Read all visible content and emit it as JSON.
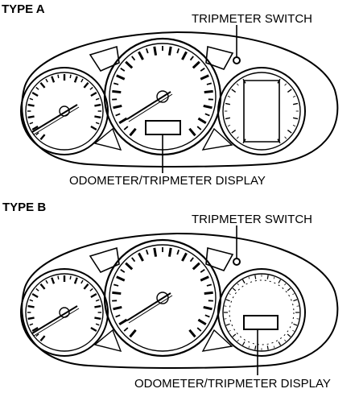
{
  "type_a": {
    "heading": "TYPE A",
    "callout_switch": "TRIPMETER SWITCH",
    "callout_display": "ODOMETER/TRIPMETER DISPLAY"
  },
  "type_b": {
    "heading": "TYPE B",
    "callout_switch": "TRIPMETER SWITCH",
    "callout_display": "ODOMETER/TRIPMETER DISPLAY"
  },
  "colors": {
    "ink": "#000000",
    "paper": "#ffffff"
  }
}
